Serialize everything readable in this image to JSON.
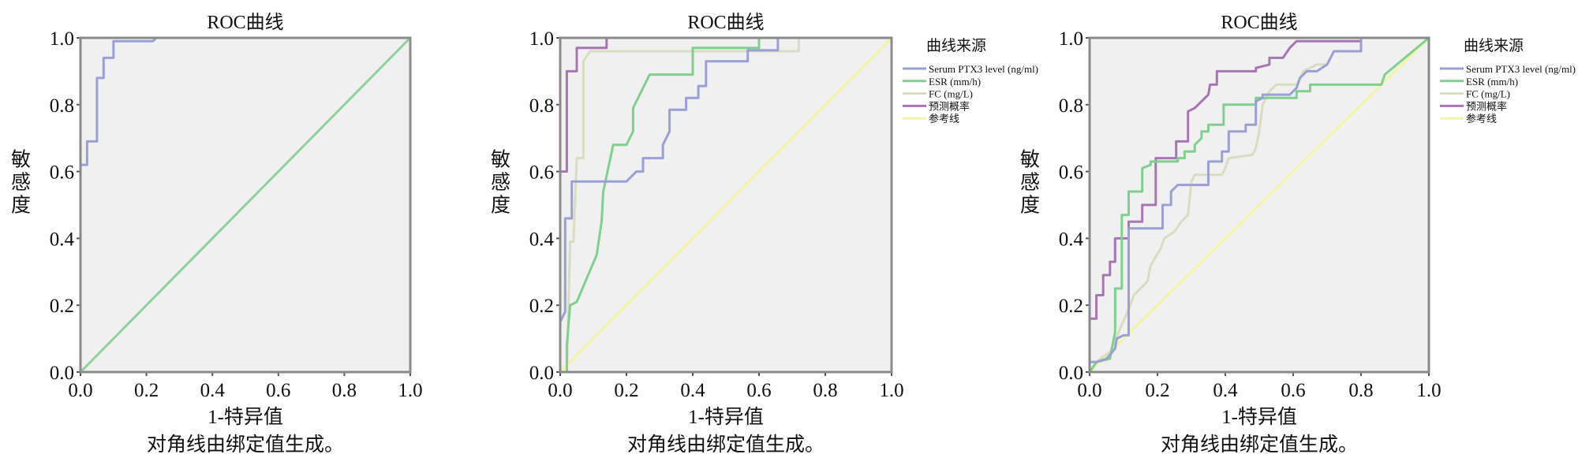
{
  "chart_data": [
    {
      "type": "line",
      "title": "ROC曲线",
      "xlabel": "1-特异值",
      "ylabel": "敏感度",
      "footnote": "对角线由绑定值生成。",
      "xlim": [
        0,
        1
      ],
      "ylim": [
        0,
        1
      ],
      "xticks": [
        "0.0",
        "0.2",
        "0.4",
        "0.6",
        "0.8",
        "1.0"
      ],
      "yticks": [
        "0.0",
        "0.2",
        "0.4",
        "0.6",
        "0.8",
        "1.0"
      ],
      "grid": false,
      "legend": null,
      "series": [
        {
          "color": "#9a9fd6",
          "points": [
            [
              0,
              0
            ],
            [
              0,
              0.62
            ],
            [
              0.02,
              0.62
            ],
            [
              0.02,
              0.69
            ],
            [
              0.05,
              0.69
            ],
            [
              0.05,
              0.88
            ],
            [
              0.07,
              0.88
            ],
            [
              0.07,
              0.94
            ],
            [
              0.1,
              0.94
            ],
            [
              0.1,
              0.99
            ],
            [
              0.22,
              0.99
            ],
            [
              0.23,
              1
            ],
            [
              1,
              1
            ]
          ]
        },
        {
          "color": "#8fd19b",
          "points": [
            [
              0,
              0
            ],
            [
              1,
              1
            ]
          ]
        }
      ]
    },
    {
      "type": "line",
      "title": "ROC曲线",
      "xlabel": "1-特异值",
      "ylabel": "敏感度",
      "footnote": "对角线由绑定值生成。",
      "xlim": [
        0,
        1
      ],
      "ylim": [
        0,
        1
      ],
      "xticks": [
        "0.0",
        "0.2",
        "0.4",
        "0.6",
        "0.8",
        "1.0"
      ],
      "yticks": [
        "0.0",
        "0.2",
        "0.4",
        "0.6",
        "0.8",
        "1.0"
      ],
      "grid": false,
      "legend": {
        "title": "曲线来源",
        "placement": "right"
      },
      "series": [
        {
          "name": "Serum PTX3 level (ng/ml)",
          "color": "#9a9fd6",
          "points": [
            [
              0,
              0
            ],
            [
              0,
              0.15
            ],
            [
              0.015,
              0.18
            ],
            [
              0.015,
              0.46
            ],
            [
              0.035,
              0.46
            ],
            [
              0.035,
              0.57
            ],
            [
              0.2,
              0.57
            ],
            [
              0.23,
              0.6
            ],
            [
              0.25,
              0.6
            ],
            [
              0.25,
              0.64
            ],
            [
              0.31,
              0.64
            ],
            [
              0.31,
              0.68
            ],
            [
              0.33,
              0.72
            ],
            [
              0.33,
              0.785
            ],
            [
              0.38,
              0.785
            ],
            [
              0.38,
              0.82
            ],
            [
              0.417,
              0.82
            ],
            [
              0.417,
              0.856
            ],
            [
              0.44,
              0.856
            ],
            [
              0.44,
              0.93
            ],
            [
              0.566,
              0.93
            ],
            [
              0.566,
              0.963
            ],
            [
              0.657,
              0.963
            ],
            [
              0.657,
              1
            ],
            [
              1,
              1
            ]
          ]
        },
        {
          "name": "ESR (mm/h)",
          "color": "#7fcf8f",
          "points": [
            [
              0.02,
              0
            ],
            [
              0.02,
              0.08
            ],
            [
              0.03,
              0.2
            ],
            [
              0.05,
              0.21
            ],
            [
              0.08,
              0.28
            ],
            [
              0.11,
              0.35
            ],
            [
              0.125,
              0.45
            ],
            [
              0.13,
              0.54
            ],
            [
              0.16,
              0.68
            ],
            [
              0.2,
              0.68
            ],
            [
              0.22,
              0.72
            ],
            [
              0.22,
              0.79
            ],
            [
              0.27,
              0.89
            ],
            [
              0.4,
              0.89
            ],
            [
              0.4,
              0.97
            ],
            [
              0.6,
              0.97
            ],
            [
              0.6,
              1
            ],
            [
              1,
              1
            ]
          ]
        },
        {
          "name": "FC (mg/L)",
          "color": "#d9dcc0",
          "points": [
            [
              0.02,
              0
            ],
            [
              0.03,
              0.39
            ],
            [
              0.04,
              0.39
            ],
            [
              0.05,
              0.64
            ],
            [
              0.07,
              0.64
            ],
            [
              0.07,
              0.93
            ],
            [
              0.09,
              0.96
            ],
            [
              0.72,
              0.96
            ],
            [
              0.72,
              1
            ],
            [
              1,
              1
            ]
          ]
        },
        {
          "name": "预测概率",
          "color": "#a774b4",
          "points": [
            [
              0,
              0
            ],
            [
              0,
              0.6
            ],
            [
              0.02,
              0.6
            ],
            [
              0.02,
              0.9
            ],
            [
              0.05,
              0.9
            ],
            [
              0.05,
              0.97
            ],
            [
              0.14,
              0.97
            ],
            [
              0.14,
              1
            ],
            [
              1,
              1
            ]
          ]
        },
        {
          "name": "参考线",
          "color": "#f4f4a6",
          "points": [
            [
              0,
              0
            ],
            [
              1,
              1
            ]
          ]
        }
      ]
    },
    {
      "type": "line",
      "title": "ROC曲线",
      "xlabel": "1-特异值",
      "ylabel": "敏感度",
      "footnote": "对角线由绑定值生成。",
      "xlim": [
        0,
        1
      ],
      "ylim": [
        0,
        1
      ],
      "xticks": [
        "0.0",
        "0.2",
        "0.4",
        "0.6",
        "0.8",
        "1.0"
      ],
      "yticks": [
        "0.0",
        "0.2",
        "0.4",
        "0.6",
        "0.8",
        "1.0"
      ],
      "grid": false,
      "legend": {
        "title": "曲线来源",
        "placement": "right"
      },
      "series": [
        {
          "name": "Serum PTX3 level (ng/ml)",
          "color": "#9a9fd6",
          "points": [
            [
              0,
              0
            ],
            [
              0,
              0.03
            ],
            [
              0.02,
              0.03
            ],
            [
              0.05,
              0.04
            ],
            [
              0.075,
              0.07
            ],
            [
              0.08,
              0.1
            ],
            [
              0.1,
              0.11
            ],
            [
              0.115,
              0.11
            ],
            [
              0.115,
              0.43
            ],
            [
              0.215,
              0.43
            ],
            [
              0.215,
              0.5
            ],
            [
              0.24,
              0.5
            ],
            [
              0.24,
              0.54
            ],
            [
              0.26,
              0.56
            ],
            [
              0.35,
              0.56
            ],
            [
              0.35,
              0.63
            ],
            [
              0.39,
              0.63
            ],
            [
              0.39,
              0.66
            ],
            [
              0.41,
              0.66
            ],
            [
              0.41,
              0.72
            ],
            [
              0.46,
              0.72
            ],
            [
              0.46,
              0.74
            ],
            [
              0.49,
              0.74
            ],
            [
              0.49,
              0.81
            ],
            [
              0.51,
              0.82
            ],
            [
              0.51,
              0.83
            ],
            [
              0.59,
              0.83
            ],
            [
              0.61,
              0.85
            ],
            [
              0.62,
              0.88
            ],
            [
              0.64,
              0.9
            ],
            [
              0.67,
              0.9
            ],
            [
              0.7,
              0.92
            ],
            [
              0.72,
              0.96
            ],
            [
              0.8,
              0.96
            ],
            [
              0.8,
              1
            ],
            [
              1,
              1
            ]
          ]
        },
        {
          "name": "ESR (mm/h)",
          "color": "#7fcf8f",
          "points": [
            [
              0,
              0
            ],
            [
              0.02,
              0.03
            ],
            [
              0.06,
              0.04
            ],
            [
              0.075,
              0.12
            ],
            [
              0.075,
              0.25
            ],
            [
              0.095,
              0.25
            ],
            [
              0.095,
              0.47
            ],
            [
              0.115,
              0.47
            ],
            [
              0.115,
              0.54
            ],
            [
              0.155,
              0.54
            ],
            [
              0.155,
              0.61
            ],
            [
              0.18,
              0.62
            ],
            [
              0.18,
              0.63
            ],
            [
              0.26,
              0.63
            ],
            [
              0.26,
              0.64
            ],
            [
              0.28,
              0.64
            ],
            [
              0.28,
              0.66
            ],
            [
              0.31,
              0.66
            ],
            [
              0.31,
              0.68
            ],
            [
              0.33,
              0.7
            ],
            [
              0.33,
              0.72
            ],
            [
              0.35,
              0.72
            ],
            [
              0.35,
              0.74
            ],
            [
              0.395,
              0.74
            ],
            [
              0.395,
              0.8
            ],
            [
              0.49,
              0.8
            ],
            [
              0.49,
              0.82
            ],
            [
              0.61,
              0.82
            ],
            [
              0.61,
              0.84
            ],
            [
              0.65,
              0.84
            ],
            [
              0.65,
              0.86
            ],
            [
              0.86,
              0.86
            ],
            [
              0.87,
              0.89
            ],
            [
              1,
              1
            ]
          ]
        },
        {
          "name": "FC (mg/L)",
          "color": "#d9dcc0",
          "points": [
            [
              0,
              0
            ],
            [
              0.03,
              0.04
            ],
            [
              0.06,
              0.06
            ],
            [
              0.09,
              0.13
            ],
            [
              0.12,
              0.2
            ],
            [
              0.13,
              0.23
            ],
            [
              0.17,
              0.27
            ],
            [
              0.18,
              0.32
            ],
            [
              0.21,
              0.37
            ],
            [
              0.22,
              0.4
            ],
            [
              0.25,
              0.42
            ],
            [
              0.27,
              0.45
            ],
            [
              0.29,
              0.47
            ],
            [
              0.3,
              0.57
            ],
            [
              0.31,
              0.59
            ],
            [
              0.39,
              0.59
            ],
            [
              0.4,
              0.61
            ],
            [
              0.41,
              0.64
            ],
            [
              0.48,
              0.65
            ],
            [
              0.49,
              0.67
            ],
            [
              0.5,
              0.72
            ],
            [
              0.51,
              0.8
            ],
            [
              0.53,
              0.84
            ],
            [
              0.55,
              0.86
            ],
            [
              0.61,
              0.86
            ],
            [
              0.63,
              0.9
            ],
            [
              0.67,
              0.92
            ],
            [
              0.7,
              0.92
            ],
            [
              0.72,
              0.96
            ],
            [
              0.8,
              0.96
            ],
            [
              0.8,
              1
            ],
            [
              1,
              1
            ]
          ]
        },
        {
          "name": "预测概率",
          "color": "#a774b4",
          "points": [
            [
              0,
              0
            ],
            [
              0,
              0.16
            ],
            [
              0.02,
              0.16
            ],
            [
              0.02,
              0.23
            ],
            [
              0.04,
              0.23
            ],
            [
              0.04,
              0.29
            ],
            [
              0.06,
              0.29
            ],
            [
              0.06,
              0.33
            ],
            [
              0.075,
              0.33
            ],
            [
              0.075,
              0.4
            ],
            [
              0.115,
              0.4
            ],
            [
              0.115,
              0.45
            ],
            [
              0.155,
              0.45
            ],
            [
              0.155,
              0.5
            ],
            [
              0.195,
              0.5
            ],
            [
              0.195,
              0.64
            ],
            [
              0.255,
              0.64
            ],
            [
              0.255,
              0.69
            ],
            [
              0.29,
              0.69
            ],
            [
              0.29,
              0.78
            ],
            [
              0.31,
              0.79
            ],
            [
              0.33,
              0.81
            ],
            [
              0.35,
              0.83
            ],
            [
              0.355,
              0.86
            ],
            [
              0.375,
              0.86
            ],
            [
              0.375,
              0.9
            ],
            [
              0.49,
              0.9
            ],
            [
              0.49,
              0.91
            ],
            [
              0.53,
              0.92
            ],
            [
              0.53,
              0.94
            ],
            [
              0.57,
              0.94
            ],
            [
              0.59,
              0.97
            ],
            [
              0.61,
              0.99
            ],
            [
              0.8,
              0.99
            ],
            [
              0.8,
              1
            ],
            [
              1,
              1
            ]
          ]
        },
        {
          "name": "参考线",
          "color": "#f4f4a6",
          "points": [
            [
              0,
              0
            ],
            [
              1,
              1
            ]
          ]
        }
      ]
    }
  ]
}
